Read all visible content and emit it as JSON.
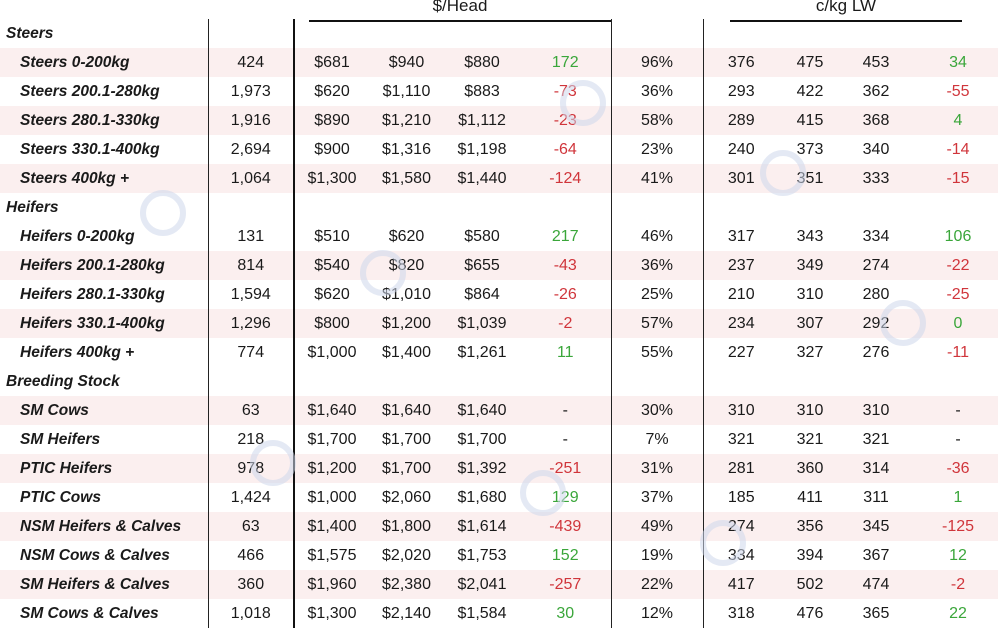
{
  "headers": {
    "dollar_head": "$/Head",
    "ckg": "c/kg LW"
  },
  "rows": [
    {
      "type": "section",
      "label": "Steers"
    },
    {
      "type": "data",
      "label": "Steers 0-200kg",
      "head": "424",
      "min": "$681",
      "max": "$940",
      "avg": "$880",
      "chg": "172",
      "pct": "96%",
      "ck_min": "376",
      "ck_max": "475",
      "ck_avg": "453",
      "ck_chg": "34"
    },
    {
      "type": "data",
      "label": "Steers 200.1-280kg",
      "head": "1,973",
      "min": "$620",
      "max": "$1,110",
      "avg": "$883",
      "chg": "-73",
      "pct": "36%",
      "ck_min": "293",
      "ck_max": "422",
      "ck_avg": "362",
      "ck_chg": "-55"
    },
    {
      "type": "data",
      "label": "Steers 280.1-330kg",
      "head": "1,916",
      "min": "$890",
      "max": "$1,210",
      "avg": "$1,112",
      "chg": "-23",
      "pct": "58%",
      "ck_min": "289",
      "ck_max": "415",
      "ck_avg": "368",
      "ck_chg": "4"
    },
    {
      "type": "data",
      "label": "Steers 330.1-400kg",
      "head": "2,694",
      "min": "$900",
      "max": "$1,316",
      "avg": "$1,198",
      "chg": "-64",
      "pct": "23%",
      "ck_min": "240",
      "ck_max": "373",
      "ck_avg": "340",
      "ck_chg": "-14"
    },
    {
      "type": "data",
      "label": "Steers 400kg +",
      "head": "1,064",
      "min": "$1,300",
      "max": "$1,580",
      "avg": "$1,440",
      "chg": "-124",
      "pct": "41%",
      "ck_min": "301",
      "ck_max": "351",
      "ck_avg": "333",
      "ck_chg": "-15"
    },
    {
      "type": "section",
      "label": "Heifers"
    },
    {
      "type": "data",
      "label": "Heifers 0-200kg",
      "head": "131",
      "min": "$510",
      "max": "$620",
      "avg": "$580",
      "chg": "217",
      "pct": "46%",
      "ck_min": "317",
      "ck_max": "343",
      "ck_avg": "334",
      "ck_chg": "106"
    },
    {
      "type": "data",
      "label": "Heifers 200.1-280kg",
      "head": "814",
      "min": "$540",
      "max": "$820",
      "avg": "$655",
      "chg": "-43",
      "pct": "36%",
      "ck_min": "237",
      "ck_max": "349",
      "ck_avg": "274",
      "ck_chg": "-22"
    },
    {
      "type": "data",
      "label": "Heifers 280.1-330kg",
      "head": "1,594",
      "min": "$620",
      "max": "$1,010",
      "avg": "$864",
      "chg": "-26",
      "pct": "25%",
      "ck_min": "210",
      "ck_max": "310",
      "ck_avg": "280",
      "ck_chg": "-25"
    },
    {
      "type": "data",
      "label": "Heifers 330.1-400kg",
      "head": "1,296",
      "min": "$800",
      "max": "$1,200",
      "avg": "$1,039",
      "chg": "-2",
      "pct": "57%",
      "ck_min": "234",
      "ck_max": "307",
      "ck_avg": "292",
      "ck_chg": "0"
    },
    {
      "type": "data",
      "label": "Heifers 400kg +",
      "head": "774",
      "min": "$1,000",
      "max": "$1,400",
      "avg": "$1,261",
      "chg": "11",
      "pct": "55%",
      "ck_min": "227",
      "ck_max": "327",
      "ck_avg": "276",
      "ck_chg": "-11"
    },
    {
      "type": "section",
      "label": "Breeding Stock"
    },
    {
      "type": "data",
      "label": "SM Cows",
      "head": "63",
      "min": "$1,640",
      "max": "$1,640",
      "avg": "$1,640",
      "chg": "-",
      "pct": "30%",
      "ck_min": "310",
      "ck_max": "310",
      "ck_avg": "310",
      "ck_chg": "-"
    },
    {
      "type": "data",
      "label": "SM Heifers",
      "head": "218",
      "min": "$1,700",
      "max": "$1,700",
      "avg": "$1,700",
      "chg": "-",
      "pct": "7%",
      "ck_min": "321",
      "ck_max": "321",
      "ck_avg": "321",
      "ck_chg": "-"
    },
    {
      "type": "data",
      "label": "PTIC Heifers",
      "head": "978",
      "min": "$1,200",
      "max": "$1,700",
      "avg": "$1,392",
      "chg": "-251",
      "pct": "31%",
      "ck_min": "281",
      "ck_max": "360",
      "ck_avg": "314",
      "ck_chg": "-36"
    },
    {
      "type": "data",
      "label": "PTIC Cows",
      "head": "1,424",
      "min": "$1,000",
      "max": "$2,060",
      "avg": "$1,680",
      "chg": "129",
      "pct": "37%",
      "ck_min": "185",
      "ck_max": "411",
      "ck_avg": "311",
      "ck_chg": "1"
    },
    {
      "type": "data",
      "label": "NSM Heifers & Calves",
      "head": "63",
      "min": "$1,400",
      "max": "$1,800",
      "avg": "$1,614",
      "chg": "-439",
      "pct": "49%",
      "ck_min": "274",
      "ck_max": "356",
      "ck_avg": "345",
      "ck_chg": "-125"
    },
    {
      "type": "data",
      "label": "NSM Cows & Calves",
      "head": "466",
      "min": "$1,575",
      "max": "$2,020",
      "avg": "$1,753",
      "chg": "152",
      "pct": "19%",
      "ck_min": "334",
      "ck_max": "394",
      "ck_avg": "367",
      "ck_chg": "12"
    },
    {
      "type": "data",
      "label": "SM Heifers & Calves",
      "head": "360",
      "min": "$1,960",
      "max": "$2,380",
      "avg": "$2,041",
      "chg": "-257",
      "pct": "22%",
      "ck_min": "417",
      "ck_max": "502",
      "ck_avg": "474",
      "ck_chg": "-2"
    },
    {
      "type": "data",
      "label": "SM Cows & Calves",
      "head": "1,018",
      "min": "$1,300",
      "max": "$2,140",
      "avg": "$1,584",
      "chg": "30",
      "pct": "12%",
      "ck_min": "318",
      "ck_max": "476",
      "ck_avg": "365",
      "ck_chg": "22"
    }
  ],
  "colors": {
    "positive": "#3aa63a",
    "negative": "#d0353b",
    "row_shade": "#fbefef"
  }
}
